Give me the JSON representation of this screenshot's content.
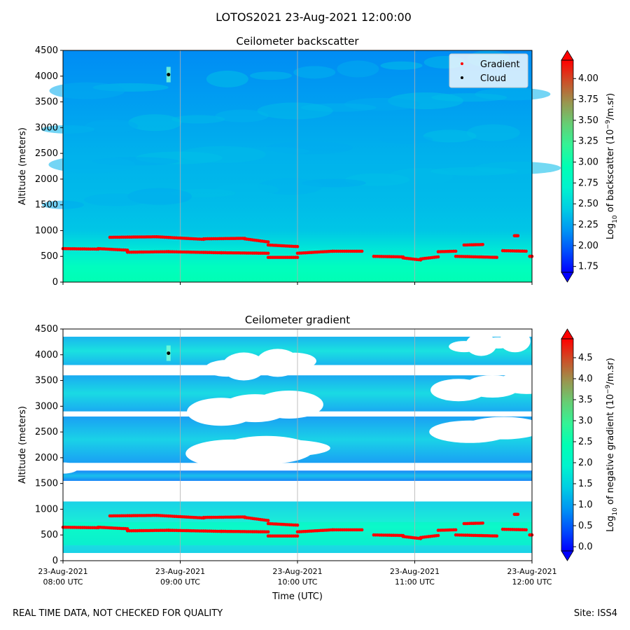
{
  "suptitle": "LOTOS2021 23-Aug-2021 12:00:00",
  "footer": {
    "left": "REAL TIME DATA, NOT CHECKED FOR QUALITY",
    "right": "Site: ISS4"
  },
  "xlabel": "Time (UTC)",
  "xticks": [
    {
      "date": "23-Aug-2021",
      "time": "08:00 UTC"
    },
    {
      "date": "23-Aug-2021",
      "time": "09:00 UTC"
    },
    {
      "date": "23-Aug-2021",
      "time": "10:00 UTC"
    },
    {
      "date": "23-Aug-2021",
      "time": "11:00 UTC"
    },
    {
      "date": "23-Aug-2021",
      "time": "12:00 UTC"
    }
  ],
  "legend": {
    "gradient": "Gradient",
    "cloud": "Cloud"
  },
  "colors": {
    "gradient_marker": "#ff0000",
    "cloud_marker": "#000000",
    "colormap": "rainbow"
  },
  "chart_data": [
    {
      "type": "heatmap",
      "title": "Ceilometer backscatter",
      "ylabel": "Altitude (meters)",
      "cbar_label": "Log10 of backscatter (10^-9/m.sr)",
      "cbar_label_parts": {
        "pre": "Log",
        "sub": "10",
        "mid": " of backscatter (10",
        "sup": "−9",
        "post": "/m.sr)"
      },
      "xlim_hours": [
        8,
        12
      ],
      "ylim": [
        0,
        4500
      ],
      "yticks": [
        0,
        500,
        1000,
        1500,
        2000,
        2500,
        3000,
        3500,
        4000,
        4500
      ],
      "clim": [
        1.68,
        4.22
      ],
      "cticks": [
        "1.75",
        "2.00",
        "2.25",
        "2.50",
        "2.75",
        "3.00",
        "3.25",
        "3.50",
        "3.75",
        "4.00"
      ],
      "profile_altitudes_m": [
        0,
        300,
        600,
        1000,
        1500,
        2500,
        3500,
        4500
      ],
      "profile_log10": [
        2.95,
        2.85,
        2.62,
        2.4,
        2.35,
        2.3,
        2.22,
        2.15
      ],
      "legend_position": "upper right"
    },
    {
      "type": "heatmap",
      "title": "Ceilometer gradient",
      "ylabel": "Altitude (meters)",
      "cbar_label": "Log10 of negative gradient (10^-9/m.sr)",
      "cbar_label_parts": {
        "pre": "Log",
        "sub": "10",
        "mid": " of negative gradient (10",
        "sup": "−9",
        "post": "/m.sr)"
      },
      "xlim_hours": [
        8,
        12
      ],
      "ylim": [
        0,
        4500
      ],
      "yticks": [
        0,
        500,
        1000,
        1500,
        2000,
        2500,
        3000,
        3500,
        4000,
        4500
      ],
      "clim": [
        -0.1,
        4.95
      ],
      "cticks": [
        "0.0",
        "0.5",
        "1.0",
        "1.5",
        "2.0",
        "2.5",
        "3.0",
        "3.5",
        "4.0",
        "4.5"
      ],
      "layers_m": [
        {
          "bottom": 150,
          "top": 1150,
          "value": 1.9
        },
        {
          "bottom": 1550,
          "top": 1750,
          "value": 1.2
        },
        {
          "bottom": 1900,
          "top": 2800,
          "value": 1.4
        },
        {
          "bottom": 2900,
          "top": 3600,
          "value": 1.5
        },
        {
          "bottom": 3800,
          "top": 4350,
          "value": 1.6
        }
      ]
    }
  ],
  "gradient_series": [
    {
      "t": [
        8.0,
        8.3
      ],
      "alt": [
        650,
        640
      ]
    },
    {
      "t": [
        8.3,
        8.55
      ],
      "alt": [
        650,
        620
      ]
    },
    {
      "t": [
        8.55,
        8.9
      ],
      "alt": [
        580,
        590
      ]
    },
    {
      "t": [
        8.9,
        9.35
      ],
      "alt": [
        590,
        570
      ]
    },
    {
      "t": [
        9.35,
        9.75
      ],
      "alt": [
        570,
        560
      ]
    },
    {
      "t": [
        9.75,
        10.0
      ],
      "alt": [
        480,
        480
      ]
    },
    {
      "t": [
        10.0,
        10.3
      ],
      "alt": [
        560,
        600
      ]
    },
    {
      "t": [
        10.3,
        10.55
      ],
      "alt": [
        600,
        600
      ]
    },
    {
      "t": [
        10.65,
        10.9
      ],
      "alt": [
        500,
        490
      ]
    },
    {
      "t": [
        10.9,
        11.05
      ],
      "alt": [
        470,
        430
      ]
    },
    {
      "t": [
        11.05,
        11.2
      ],
      "alt": [
        450,
        490
      ]
    },
    {
      "t": [
        11.2,
        11.35
      ],
      "alt": [
        590,
        600
      ]
    },
    {
      "t": [
        11.35,
        11.7
      ],
      "alt": [
        500,
        480
      ]
    },
    {
      "t": [
        11.75,
        11.95
      ],
      "alt": [
        610,
        600
      ]
    },
    {
      "t": [
        11.98,
        12.0
      ],
      "alt": [
        500,
        500
      ]
    },
    {
      "t": [
        8.4,
        8.8
      ],
      "alt": [
        870,
        880
      ]
    },
    {
      "t": [
        8.8,
        9.2
      ],
      "alt": [
        880,
        830
      ]
    },
    {
      "t": [
        9.2,
        9.55
      ],
      "alt": [
        840,
        850
      ]
    },
    {
      "t": [
        9.55,
        9.75
      ],
      "alt": [
        840,
        780
      ]
    },
    {
      "t": [
        9.75,
        10.0
      ],
      "alt": [
        720,
        690
      ]
    },
    {
      "t": [
        11.42,
        11.58
      ],
      "alt": [
        720,
        730
      ]
    },
    {
      "t": [
        11.85,
        11.88
      ],
      "alt": [
        900,
        900
      ]
    }
  ],
  "cloud_points": [
    {
      "t": 8.9,
      "alt": 4030
    }
  ]
}
